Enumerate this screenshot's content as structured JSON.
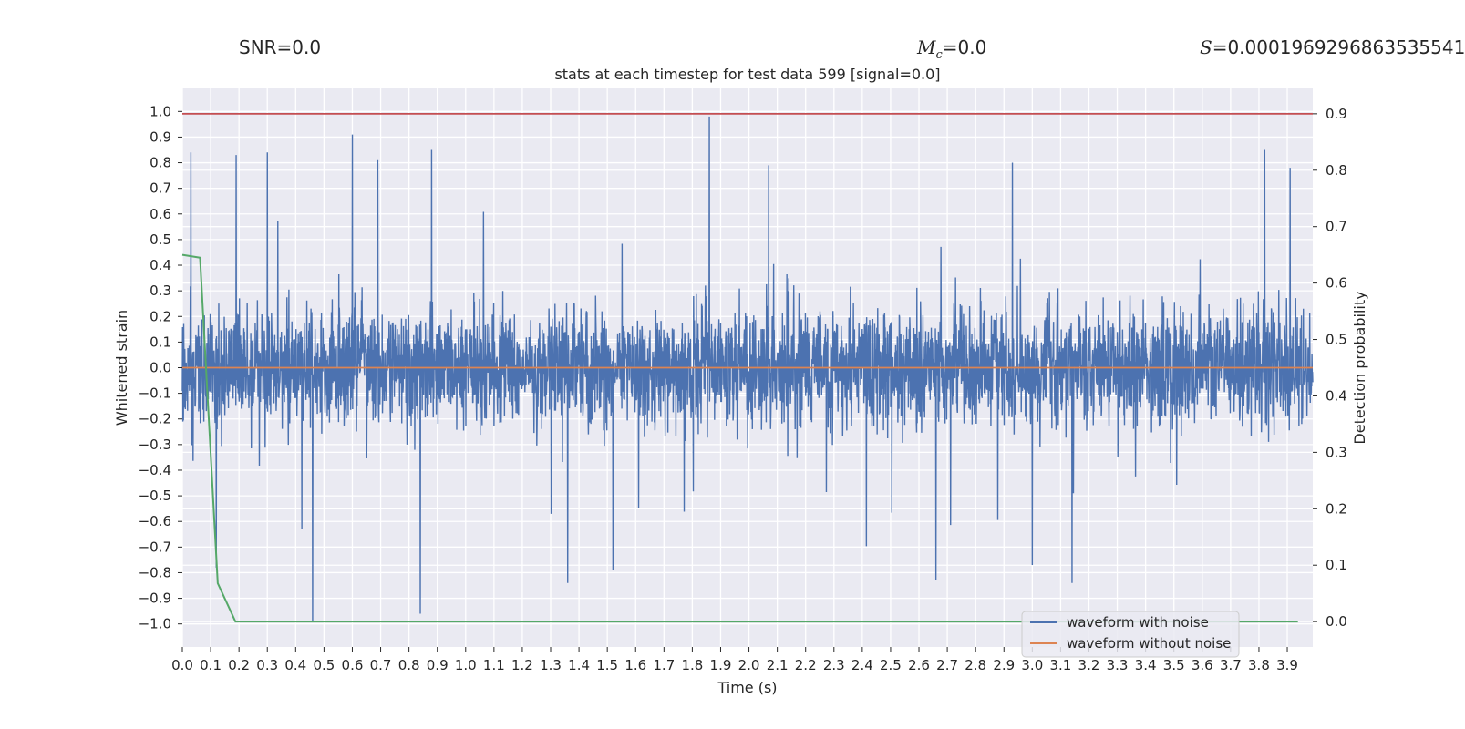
{
  "header": {
    "snr_label": "SNR=0.0",
    "mc_symbol": "M",
    "mc_subscript": "c",
    "mc_value": "=0.0",
    "s_symbol": "S",
    "s_value": "=0.0001969296863535541"
  },
  "chart_data": {
    "type": "line",
    "title": "stats at each timestep for test data 599 [signal=0.0]",
    "xlabel": "Time (s)",
    "ylabel": "Whitened strain",
    "y2label": "Detection probability",
    "xlim": [
      0.0,
      3.99
    ],
    "ylim": [
      -1.09,
      1.09
    ],
    "y2lim": [
      -0.045,
      0.945
    ],
    "xticks": [
      0.0,
      0.1,
      0.2,
      0.3,
      0.4,
      0.5,
      0.6,
      0.7,
      0.8,
      0.9,
      1.0,
      1.1,
      1.2,
      1.3,
      1.4,
      1.5,
      1.6,
      1.7,
      1.8,
      1.9,
      2.0,
      2.1,
      2.2,
      2.3,
      2.4,
      2.5,
      2.6,
      2.7,
      2.8,
      2.9,
      3.0,
      3.1,
      3.2,
      3.3,
      3.4,
      3.5,
      3.6,
      3.7,
      3.8,
      3.9
    ],
    "yticks": [
      -1.0,
      -0.9,
      -0.8,
      -0.7,
      -0.6,
      -0.5,
      -0.4,
      -0.3,
      -0.2,
      -0.1,
      0.0,
      0.1,
      0.2,
      0.3,
      0.4,
      0.5,
      0.6,
      0.7,
      0.8,
      0.9,
      1.0
    ],
    "y2ticks": [
      0.0,
      0.1,
      0.2,
      0.3,
      0.4,
      0.5,
      0.6,
      0.7,
      0.8,
      0.9
    ],
    "grid": true,
    "legend_position": "bottom-right",
    "legend": [
      "waveform with noise",
      "waveform without noise"
    ],
    "colors": {
      "noisy": "#4c72b0",
      "clean": "#dd8452",
      "probability": "#55a868",
      "threshold": "#c44e52",
      "plot_bg": "#eaeaf2",
      "grid": "#ffffff"
    },
    "series": [
      {
        "name": "waveform with noise",
        "axis": "left",
        "sample_count": 4096,
        "approx_std": 0.22,
        "spike_points": [
          {
            "x": 0.03,
            "y": 0.84
          },
          {
            "x": 0.19,
            "y": 0.83
          },
          {
            "x": 0.3,
            "y": 0.84
          },
          {
            "x": 0.6,
            "y": 0.91
          },
          {
            "x": 0.69,
            "y": 0.81
          },
          {
            "x": 0.88,
            "y": 0.85
          },
          {
            "x": 1.86,
            "y": 0.98
          },
          {
            "x": 2.07,
            "y": 0.79
          },
          {
            "x": 2.93,
            "y": 0.8
          },
          {
            "x": 3.82,
            "y": 0.85
          },
          {
            "x": 3.91,
            "y": 0.78
          },
          {
            "x": 0.46,
            "y": -0.99
          },
          {
            "x": 0.84,
            "y": -0.96
          },
          {
            "x": 1.52,
            "y": -0.79
          },
          {
            "x": 1.36,
            "y": -0.84
          },
          {
            "x": 0.12,
            "y": -0.78
          },
          {
            "x": 2.66,
            "y": -0.83
          },
          {
            "x": 3.14,
            "y": -0.84
          },
          {
            "x": 3.0,
            "y": -0.77
          }
        ]
      },
      {
        "name": "waveform without noise",
        "axis": "left",
        "x": [
          0.0,
          3.99
        ],
        "y": [
          0.0,
          0.0
        ]
      },
      {
        "axis": "right",
        "x": [
          0.0,
          0.0625,
          0.125,
          0.1875,
          0.25,
          3.5,
          3.9375
        ],
        "y": [
          0.65,
          0.645,
          0.068,
          0.0,
          0.0,
          0.0,
          0.0
        ]
      },
      {
        "axis": "right",
        "x": [
          0.0,
          3.99
        ],
        "y": [
          0.9,
          0.9
        ]
      }
    ]
  }
}
